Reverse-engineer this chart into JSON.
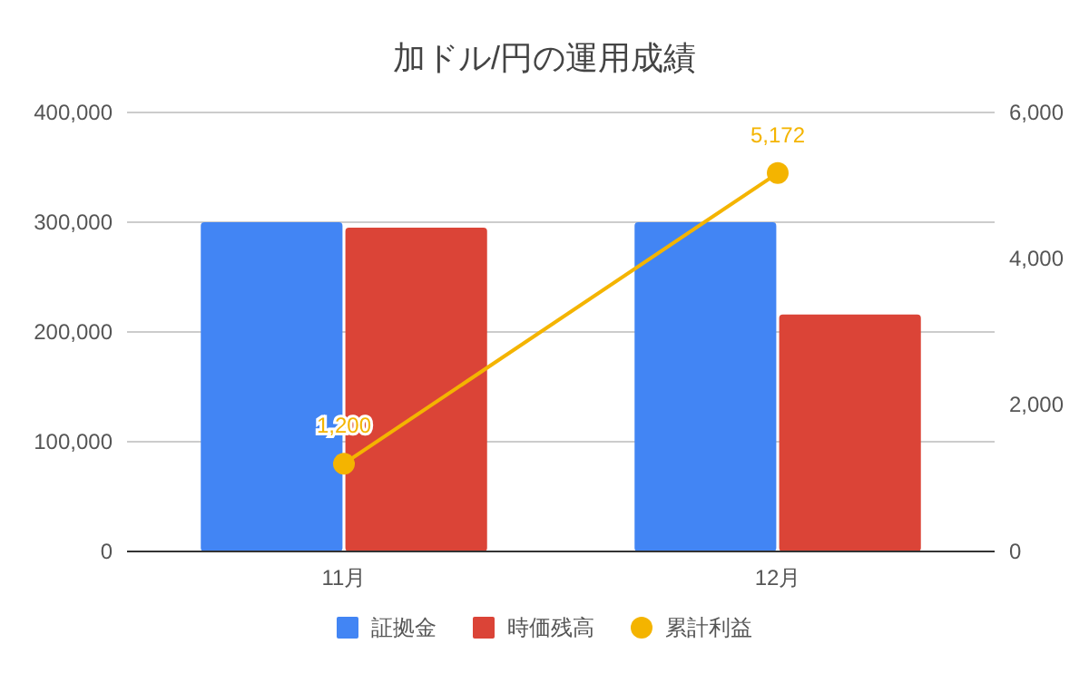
{
  "chart_data": {
    "type": "bar",
    "title": "加ドル/円の運用成績",
    "categories": [
      "11月",
      "12月"
    ],
    "series": [
      {
        "name": "証拠金",
        "color": "#4285f4",
        "values": [
          300000,
          300000
        ]
      },
      {
        "name": "時価残高",
        "color": "#db4437",
        "values": [
          295000,
          216000
        ]
      },
      {
        "name": "累計利益",
        "type": "line",
        "axis": "y2",
        "color": "#f4b400",
        "values": [
          1200,
          5172
        ],
        "value_labels": [
          "1,200",
          "5,172"
        ]
      }
    ],
    "ylim": [
      0,
      400000
    ],
    "yticks": [
      {
        "value": 0,
        "label": "0"
      },
      {
        "value": 100000,
        "label": "100,000"
      },
      {
        "value": 200000,
        "label": "200,000"
      },
      {
        "value": 300000,
        "label": "300,000"
      },
      {
        "value": 400000,
        "label": "400,000"
      }
    ],
    "y2lim": [
      0,
      6000
    ],
    "y2ticks": [
      {
        "value": 0,
        "label": "0"
      },
      {
        "value": 2000,
        "label": "2,000"
      },
      {
        "value": 4000,
        "label": "4,000"
      },
      {
        "value": 6000,
        "label": "6,000"
      }
    ],
    "grid": "y",
    "legend": "bottom",
    "marker": "circle"
  }
}
